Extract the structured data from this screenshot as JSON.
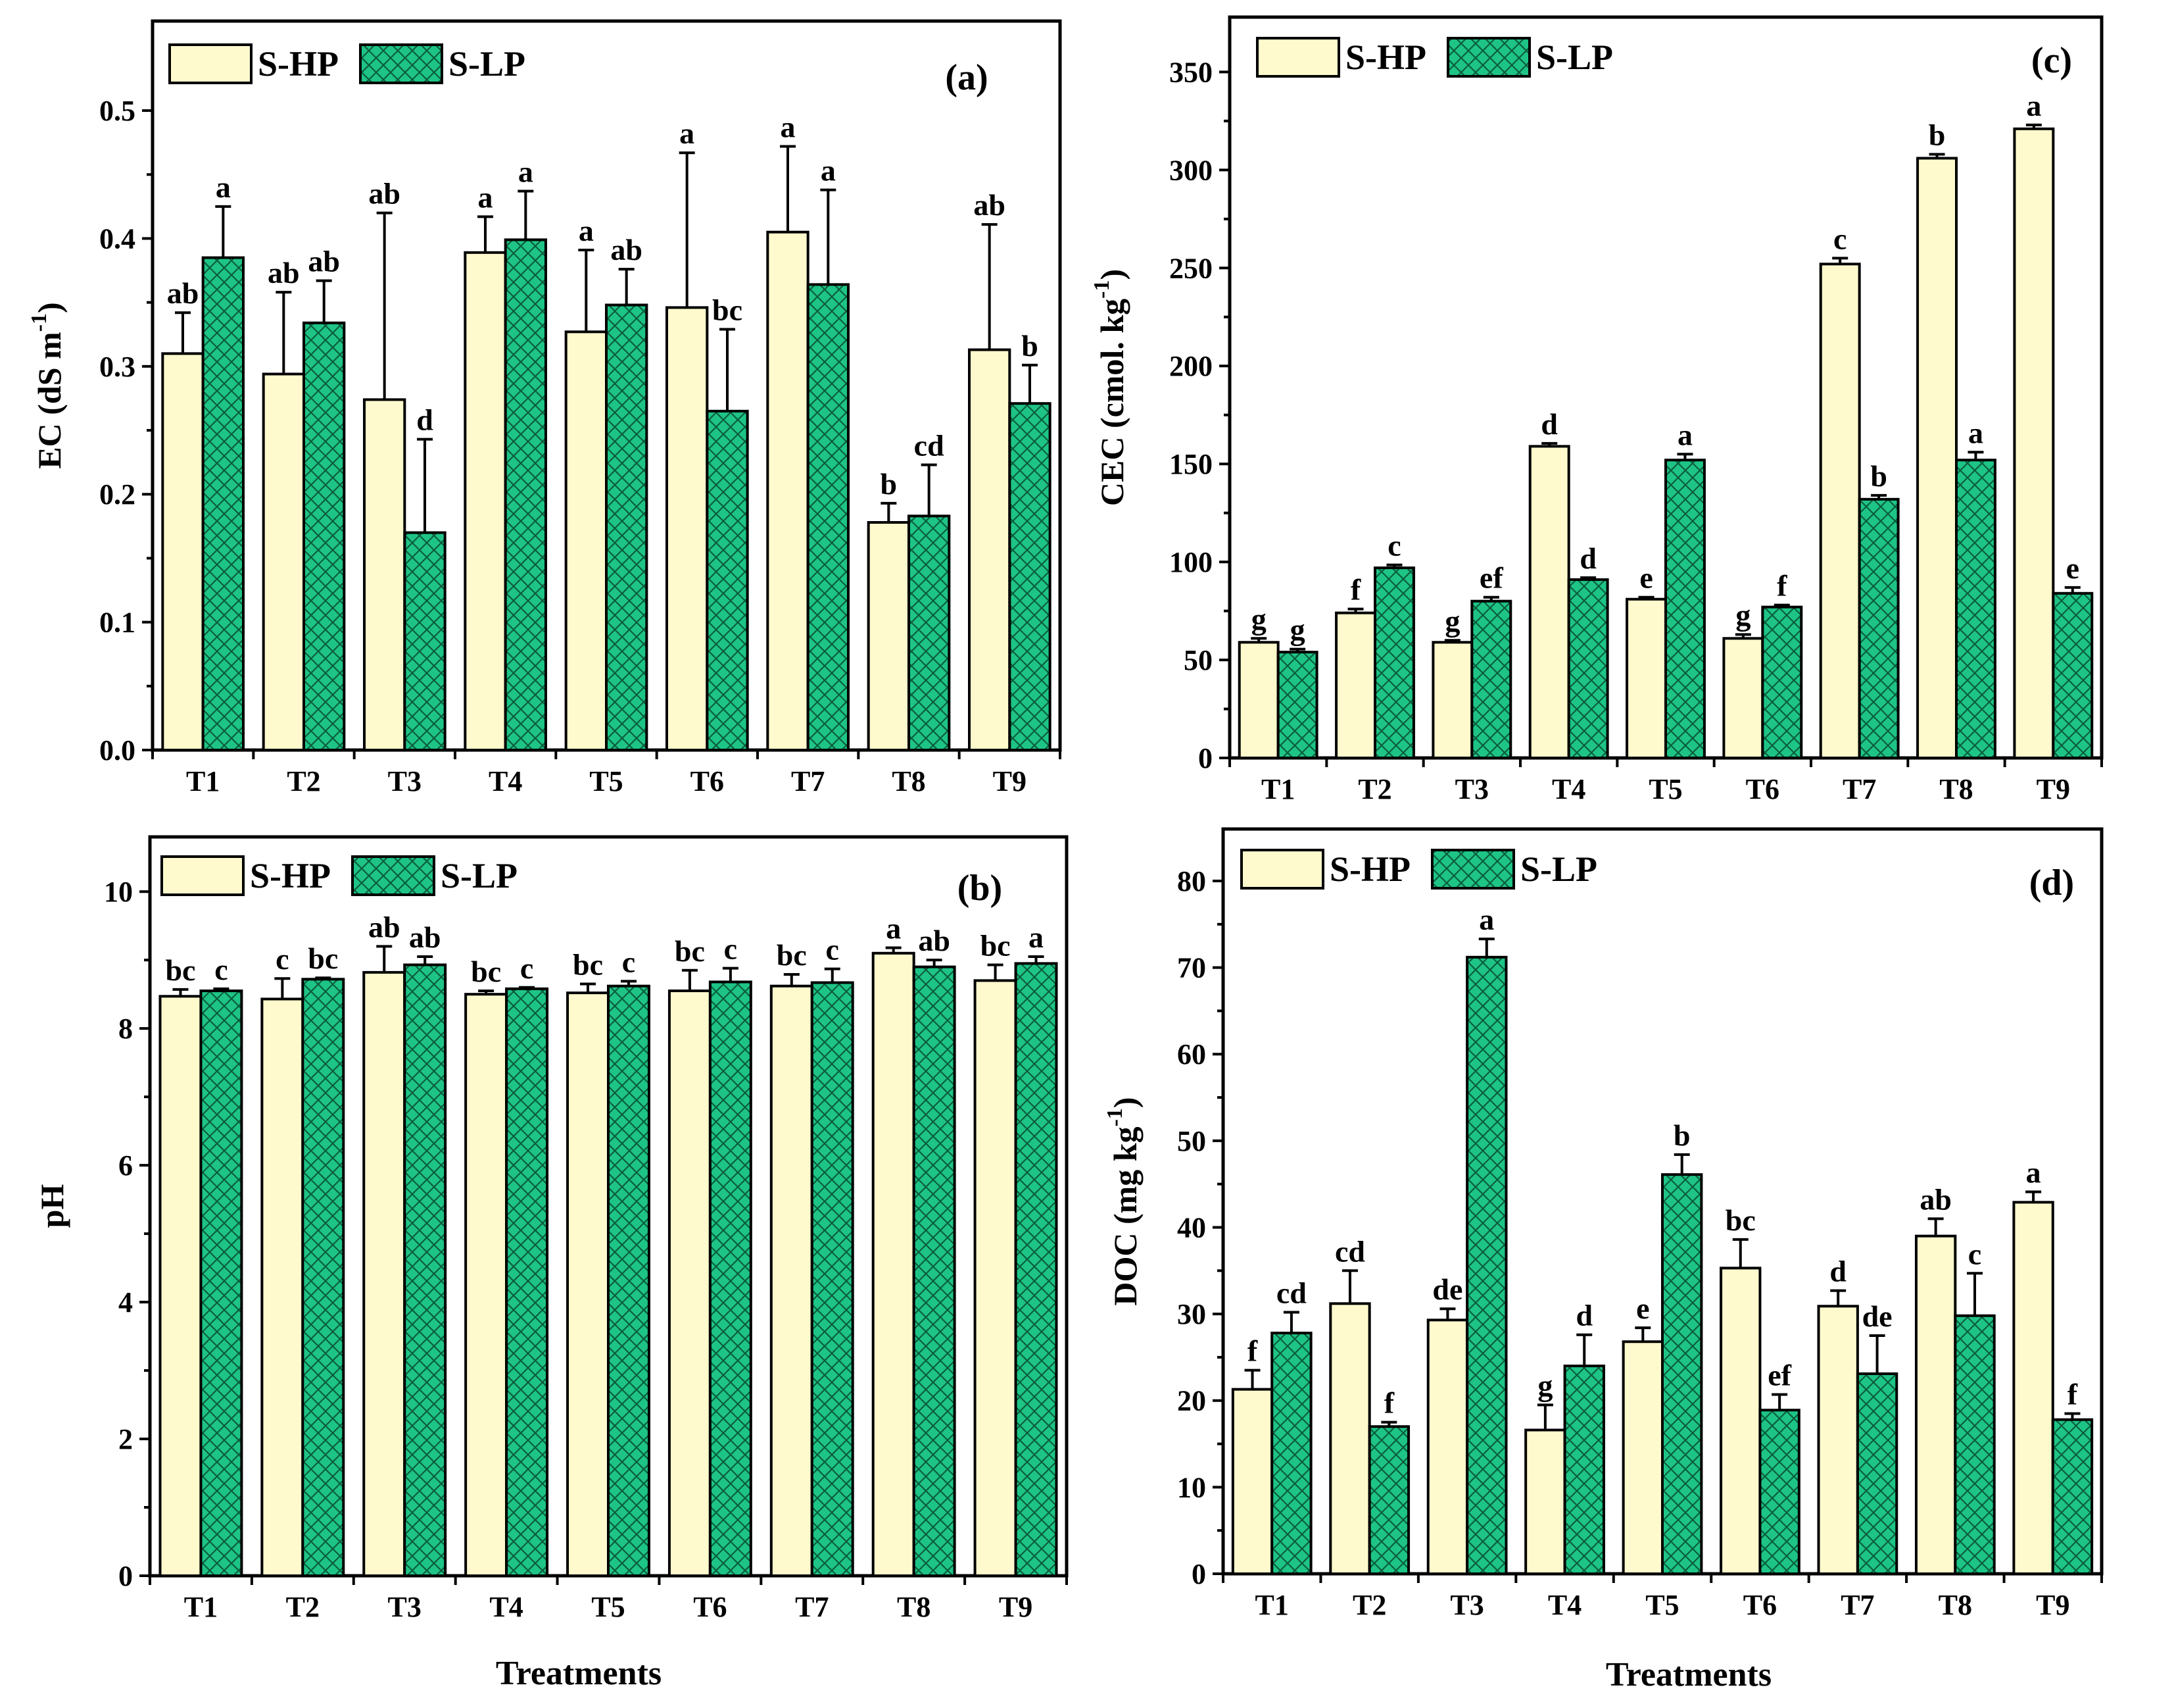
{
  "colors": {
    "s_hp": "#fffacd",
    "s_lp": "#1ec486",
    "s_lp_hatch": "#0b5e3c"
  },
  "legend": {
    "s_hp": "S-HP",
    "s_lp": "S-LP"
  },
  "xlabel_bottom": "Treatments",
  "chart_data": [
    {
      "panel": "(a)",
      "type": "bar",
      "ylabel": "EC (dS m-1)",
      "ylabel_main": "EC (dS m",
      "ylabel_sup": "-1",
      "ylabel_end": ")",
      "ylim": [
        0,
        0.57
      ],
      "yticks": [
        0.0,
        0.1,
        0.2,
        0.3,
        0.4,
        0.5
      ],
      "ytick_labels": [
        "0.0",
        "0.1",
        "0.2",
        "0.3",
        "0.4",
        "0.5"
      ],
      "categories": [
        "T1",
        "T2",
        "T3",
        "T4",
        "T5",
        "T6",
        "T7",
        "T8",
        "T9"
      ],
      "series": [
        {
          "name": "S-HP",
          "values": [
            0.31,
            0.294,
            0.274,
            0.389,
            0.327,
            0.346,
            0.405,
            0.178,
            0.313
          ],
          "errors": [
            0.032,
            0.064,
            0.146,
            0.028,
            0.064,
            0.121,
            0.067,
            0.015,
            0.098
          ],
          "letters": [
            "ab",
            "ab",
            "ab",
            "a",
            "a",
            "a",
            "a",
            "b",
            "ab"
          ]
        },
        {
          "name": "S-LP",
          "values": [
            0.385,
            0.334,
            0.17,
            0.399,
            0.348,
            0.265,
            0.364,
            0.183,
            0.271
          ],
          "errors": [
            0.04,
            0.033,
            0.073,
            0.038,
            0.028,
            0.064,
            0.074,
            0.04,
            0.03
          ],
          "letters": [
            "a",
            "ab",
            "d",
            "a",
            "ab",
            "bc",
            "a",
            "cd",
            "b"
          ]
        }
      ]
    },
    {
      "panel": "(b)",
      "type": "bar",
      "ylabel": "pH",
      "ylim": [
        0,
        10.8
      ],
      "yticks": [
        0,
        2,
        4,
        6,
        8,
        10
      ],
      "ytick_labels": [
        "0",
        "2",
        "4",
        "6",
        "8",
        "10"
      ],
      "categories": [
        "T1",
        "T2",
        "T3",
        "T4",
        "T5",
        "T6",
        "T7",
        "T8",
        "T9"
      ],
      "series": [
        {
          "name": "S-HP",
          "values": [
            8.47,
            8.43,
            8.82,
            8.5,
            8.52,
            8.55,
            8.62,
            9.1,
            8.7
          ],
          "errors": [
            0.1,
            0.3,
            0.38,
            0.05,
            0.13,
            0.3,
            0.17,
            0.08,
            0.23
          ],
          "letters": [
            "bc",
            "c",
            "ab",
            "bc",
            "bc",
            "bc",
            "bc",
            "a",
            "bc"
          ]
        },
        {
          "name": "S-LP",
          "values": [
            8.55,
            8.72,
            8.93,
            8.58,
            8.62,
            8.68,
            8.67,
            8.9,
            8.95
          ],
          "errors": [
            0.03,
            0.02,
            0.12,
            0.02,
            0.07,
            0.2,
            0.2,
            0.1,
            0.1
          ],
          "letters": [
            "c",
            "bc",
            "ab",
            "c",
            "c",
            "c",
            "c",
            "ab",
            "a"
          ]
        }
      ]
    },
    {
      "panel": "(c)",
      "type": "bar",
      "ylabel": "CEC (cmol. kg-1)",
      "ylabel_main": "CEC (cmol. kg",
      "ylabel_sup": "-1",
      "ylabel_end": ")",
      "ylim": [
        0,
        378
      ],
      "yticks": [
        0,
        50,
        100,
        150,
        200,
        250,
        300,
        350
      ],
      "ytick_labels": [
        "0",
        "50",
        "100",
        "150",
        "200",
        "250",
        "300",
        "350"
      ],
      "categories": [
        "T1",
        "T2",
        "T3",
        "T4",
        "T5",
        "T6",
        "T7",
        "T8",
        "T9"
      ],
      "series": [
        {
          "name": "S-HP",
          "values": [
            59,
            74,
            59,
            159,
            81,
            61,
            252,
            306,
            321
          ],
          "errors": [
            2,
            2,
            1,
            1.5,
            1,
            2,
            3,
            2,
            2
          ],
          "letters": [
            "g",
            "f",
            "g",
            "d",
            "e",
            "g",
            "c",
            "b",
            "a"
          ]
        },
        {
          "name": "S-LP",
          "values": [
            54,
            97,
            80,
            91,
            152,
            77,
            132,
            152,
            84
          ],
          "errors": [
            1.5,
            1.5,
            2,
            1,
            3,
            1,
            2,
            4,
            3
          ],
          "letters": [
            "g",
            "c",
            "ef",
            "d",
            "a",
            "f",
            "b",
            "a",
            "e"
          ]
        }
      ]
    },
    {
      "panel": "(d)",
      "type": "bar",
      "ylabel": "DOC (mg kg-1)",
      "ylabel_main": "DOC (mg kg",
      "ylabel_sup": "-1",
      "ylabel_end": ")",
      "ylim": [
        0,
        86
      ],
      "yticks": [
        0,
        10,
        20,
        30,
        40,
        50,
        60,
        70,
        80
      ],
      "ytick_labels": [
        "0",
        "10",
        "20",
        "30",
        "40",
        "50",
        "60",
        "70",
        "80"
      ],
      "categories": [
        "T1",
        "T2",
        "T3",
        "T4",
        "T5",
        "T6",
        "T7",
        "T8",
        "T9"
      ],
      "series": [
        {
          "name": "S-HP",
          "values": [
            21.3,
            31.2,
            29.3,
            16.6,
            26.8,
            35.3,
            30.9,
            39,
            42.9
          ],
          "errors": [
            2.2,
            3.8,
            1.3,
            2.9,
            1.6,
            3.3,
            1.8,
            2,
            1.2
          ],
          "letters": [
            "f",
            "cd",
            "de",
            "g",
            "e",
            "bc",
            "d",
            "ab",
            "a"
          ]
        },
        {
          "name": "S-LP",
          "values": [
            27.8,
            17,
            71.2,
            24,
            46.1,
            18.9,
            23.1,
            29.8,
            17.8
          ],
          "errors": [
            2.4,
            0.5,
            2.1,
            3.6,
            2.3,
            1.8,
            4.4,
            4.9,
            0.7
          ],
          "letters": [
            "cd",
            "f",
            "a",
            "d",
            "b",
            "ef",
            "de",
            "c",
            "f"
          ]
        }
      ]
    }
  ]
}
